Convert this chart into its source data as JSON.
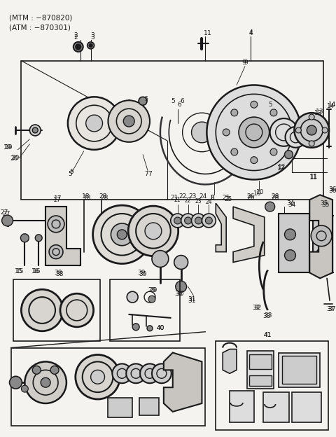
{
  "bg_color": "#f5f3ef",
  "line_color": "#1a1a1a",
  "header_text1": "(MTM : −870820)",
  "header_text2": "(ATM : −870301)",
  "fig_width": 4.8,
  "fig_height": 6.24,
  "dpi": 100
}
